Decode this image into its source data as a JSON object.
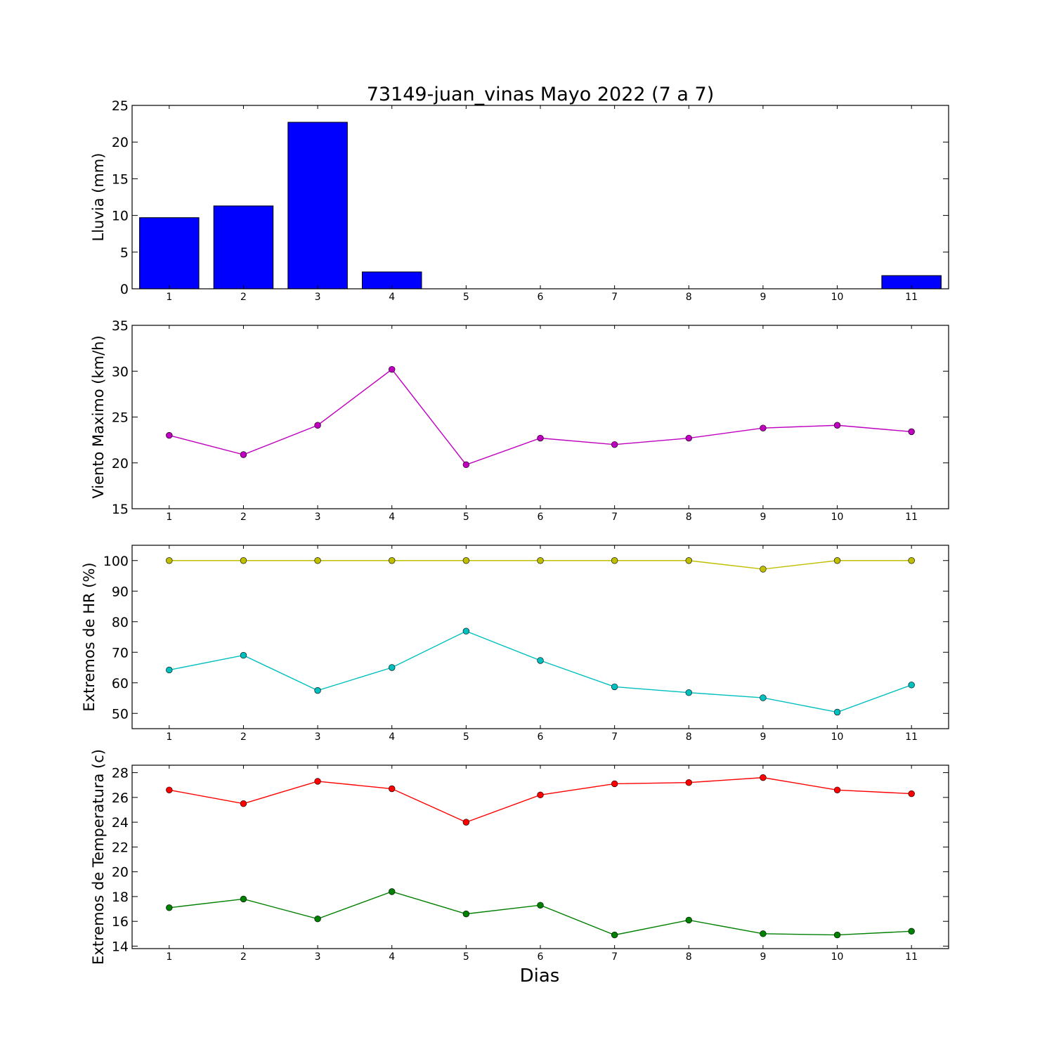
{
  "title": "73149-juan_vinas Mayo 2022  (7 a 7)",
  "xlabel": "Dias",
  "chart_data": [
    {
      "type": "bar",
      "ylabel": "Lluvia (mm)",
      "x": [
        1,
        2,
        3,
        4,
        5,
        6,
        7,
        8,
        9,
        10,
        11
      ],
      "ylim": [
        0,
        25
      ],
      "yticks": [
        0,
        5,
        10,
        15,
        20,
        25
      ],
      "grid": false,
      "series": [
        {
          "color": "#0000ff",
          "values": [
            9.7,
            11.3,
            22.7,
            2.3,
            0,
            0,
            0,
            0,
            0,
            0,
            1.8
          ]
        }
      ]
    },
    {
      "type": "line",
      "ylabel": "Viento Maximo (km/h)",
      "x": [
        1,
        2,
        3,
        4,
        5,
        6,
        7,
        8,
        9,
        10,
        11
      ],
      "ylim": [
        15,
        35
      ],
      "yticks": [
        15,
        20,
        25,
        30,
        35
      ],
      "grid": false,
      "series": [
        {
          "color": "#bf00bf",
          "values": [
            23.0,
            20.9,
            24.1,
            30.2,
            19.8,
            22.7,
            22.0,
            22.7,
            23.8,
            24.1,
            23.4
          ]
        }
      ]
    },
    {
      "type": "line",
      "ylabel": "Extremos de HR (%)",
      "x": [
        1,
        2,
        3,
        4,
        5,
        6,
        7,
        8,
        9,
        10,
        11
      ],
      "ylim": [
        45,
        105
      ],
      "yticks": [
        50,
        60,
        70,
        80,
        90,
        100
      ],
      "grid": false,
      "series": [
        {
          "color": "#bfbf00",
          "values": [
            100,
            100,
            100,
            100,
            100,
            100,
            100,
            100,
            97.2,
            100,
            100
          ]
        },
        {
          "color": "#00bfbf",
          "values": [
            64.2,
            69.0,
            57.5,
            65.0,
            76.9,
            67.3,
            58.7,
            56.8,
            55.1,
            50.4,
            59.3
          ]
        }
      ]
    },
    {
      "type": "line",
      "ylabel": "Extremos de Temperatura (c)",
      "x": [
        1,
        2,
        3,
        4,
        5,
        6,
        7,
        8,
        9,
        10,
        11
      ],
      "ylim": [
        13.8,
        28.6
      ],
      "yticks": [
        14,
        16,
        18,
        20,
        22,
        24,
        26,
        28
      ],
      "grid": false,
      "series": [
        {
          "color": "#ff0000",
          "values": [
            26.6,
            25.5,
            27.3,
            26.7,
            24.0,
            26.2,
            27.1,
            27.2,
            27.6,
            26.6,
            26.3
          ]
        },
        {
          "color": "#008000",
          "values": [
            17.1,
            17.8,
            16.2,
            18.4,
            16.6,
            17.3,
            14.9,
            16.1,
            15.0,
            14.9,
            15.2
          ]
        }
      ]
    }
  ]
}
